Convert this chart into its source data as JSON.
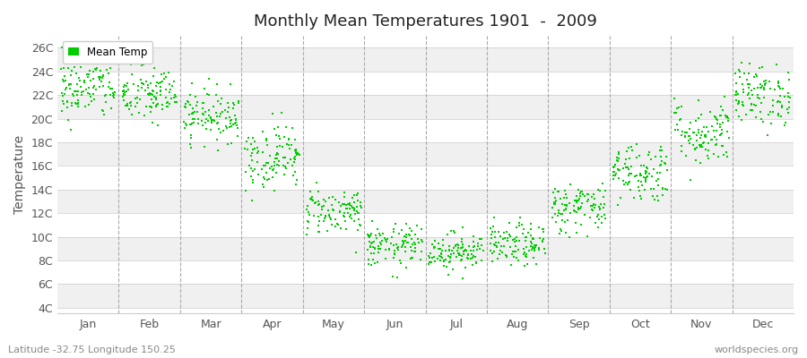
{
  "title": "Monthly Mean Temperatures 1901  -  2009",
  "ylabel": "Temperature",
  "subtitle_left": "Latitude -32.75 Longitude 150.25",
  "subtitle_right": "worldspecies.org",
  "legend_label": "Mean Temp",
  "marker_color": "#00cc00",
  "background_color": "#ffffff",
  "stripe_colors": [
    "#f0f0f0",
    "#ffffff"
  ],
  "ytick_labels": [
    "4C",
    "6C",
    "8C",
    "10C",
    "12C",
    "14C",
    "16C",
    "18C",
    "20C",
    "22C",
    "24C",
    "26C"
  ],
  "ytick_values": [
    4,
    6,
    8,
    10,
    12,
    14,
    16,
    18,
    20,
    22,
    24,
    26
  ],
  "ylim": [
    3.5,
    27
  ],
  "months": [
    "Jan",
    "Feb",
    "Mar",
    "Apr",
    "May",
    "Jun",
    "Jul",
    "Aug",
    "Sep",
    "Oct",
    "Nov",
    "Dec"
  ],
  "monthly_means": [
    22.5,
    22.0,
    20.3,
    16.8,
    12.2,
    9.2,
    8.8,
    9.3,
    12.5,
    15.5,
    18.8,
    22.0
  ],
  "monthly_stds": [
    1.3,
    1.2,
    1.1,
    1.4,
    1.0,
    0.9,
    0.8,
    0.9,
    1.1,
    1.3,
    1.4,
    1.3
  ],
  "n_years": 109,
  "seed": 42
}
